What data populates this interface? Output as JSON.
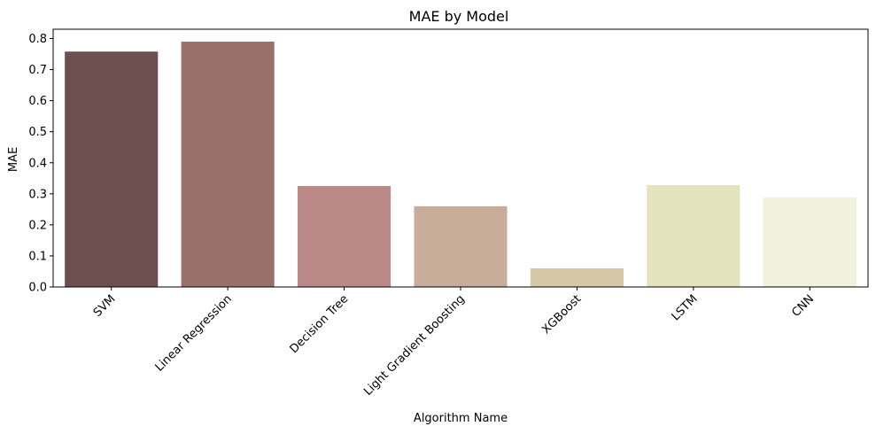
{
  "chart_data": {
    "type": "bar",
    "title": "MAE by Model",
    "xlabel": "Algorithm Name",
    "ylabel": "MAE",
    "categories": [
      "SVM",
      "Linear Regression",
      "Decision Tree",
      "Light Gradient Boosting",
      "XGBoost",
      "LSTM",
      "CNN"
    ],
    "values": [
      0.758,
      0.79,
      0.325,
      0.26,
      0.06,
      0.328,
      0.288
    ],
    "colors": [
      "#6e5050",
      "#9a706d",
      "#bb8987",
      "#c8ad9a",
      "#d5c8a6",
      "#e3e3bd",
      "#f1f1de"
    ],
    "ylim": [
      0,
      0.83
    ],
    "yticks": [
      0.0,
      0.1,
      0.2,
      0.3,
      0.4,
      0.5,
      0.6,
      0.7,
      0.8
    ],
    "ytick_labels": [
      "0.0",
      "0.1",
      "0.2",
      "0.3",
      "0.4",
      "0.5",
      "0.6",
      "0.7",
      "0.8"
    ],
    "grid": false,
    "legend": "none"
  }
}
